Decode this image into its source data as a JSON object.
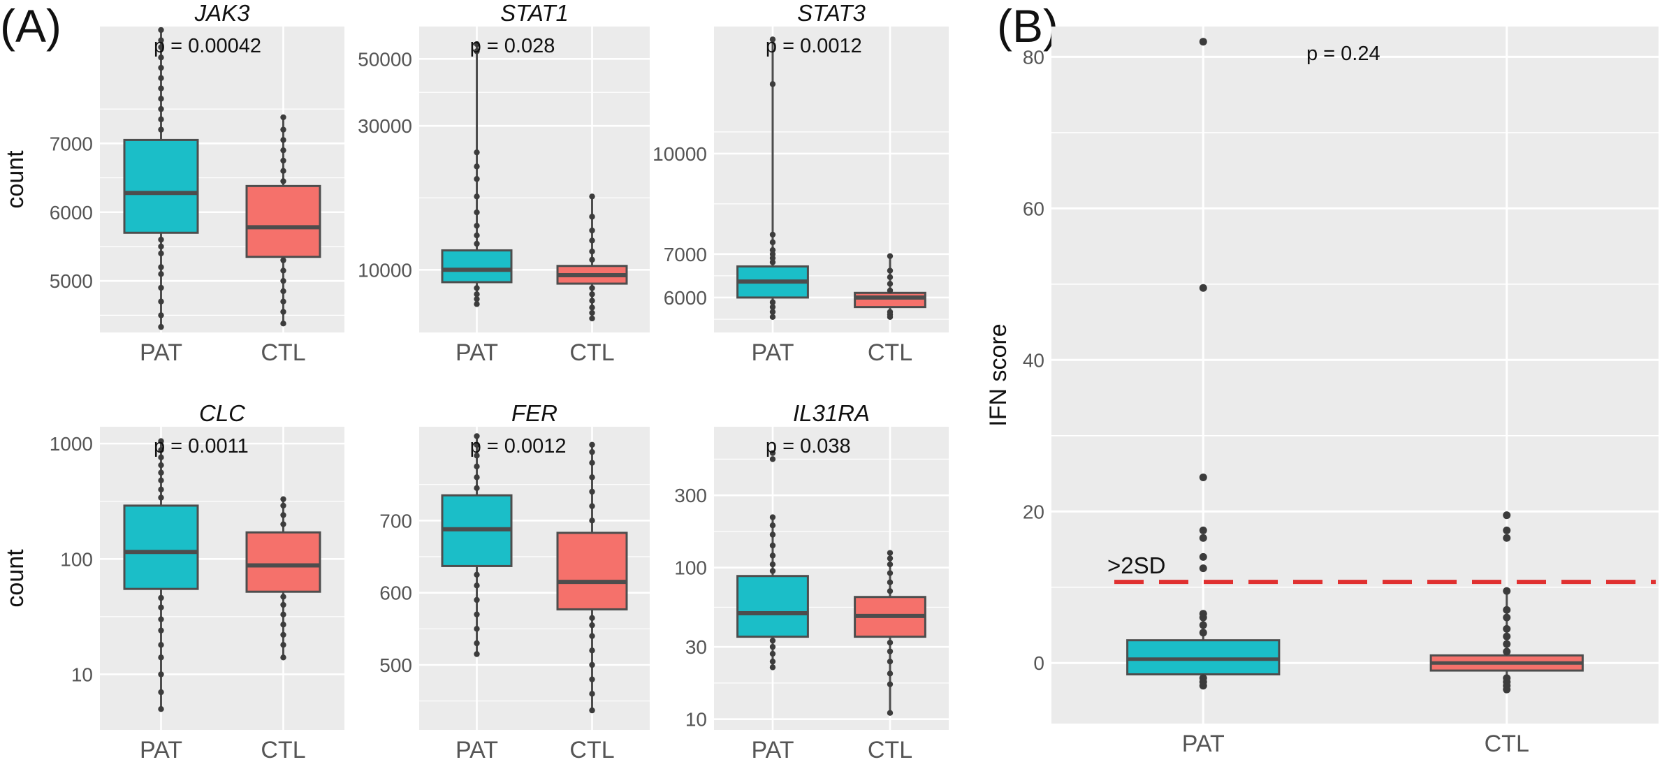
{
  "panel_labels": {
    "a": "(A)",
    "b": "(B)"
  },
  "colors": {
    "pat_fill": "#1bbec8",
    "ctl_fill": "#f5716b",
    "panel_bg": "#ebebeb",
    "grid": "#ffffff",
    "box_stroke": "#4d4d4d",
    "points": "#3c3c3c",
    "threshold": "#e03030"
  },
  "chart_data": [
    {
      "type": "box",
      "id": "jak3",
      "title": "JAK3",
      "pvalue": "p = 0.00042",
      "ylabel": "count",
      "yscale": "linear",
      "ylim": [
        4250,
        8700
      ],
      "yticks": [
        5000,
        6000,
        7000
      ],
      "ytick_labels": [
        "5000",
        "6000",
        "7000"
      ],
      "categories": [
        "PAT",
        "CTL"
      ],
      "boxes": [
        {
          "group": "PAT",
          "min": 4330,
          "q1": 5700,
          "median": 6280,
          "q3": 7050,
          "max": 8650,
          "points": [
            4330,
            4500,
            4700,
            4900,
            5100,
            5200,
            5400,
            5500,
            5600,
            7200,
            7350,
            7500,
            7650,
            7800,
            7950,
            8100,
            8250,
            8400,
            8500,
            8650
          ]
        },
        {
          "group": "CTL",
          "min": 4380,
          "q1": 5350,
          "median": 5780,
          "q3": 6380,
          "max": 7380,
          "points": [
            4380,
            4550,
            4700,
            4850,
            5000,
            5150,
            5300,
            6450,
            6600,
            6750,
            6900,
            7050,
            7200,
            7380
          ]
        }
      ]
    },
    {
      "type": "box",
      "id": "stat1",
      "title": "STAT1",
      "pvalue": "p = 0.028",
      "ylabel": "",
      "yscale": "log",
      "ylim": [
        6200,
        64000
      ],
      "yticks": [
        10000,
        30000,
        50000
      ],
      "ytick_labels": [
        "10000",
        "30000",
        "50000"
      ],
      "categories": [
        "PAT",
        "CTL"
      ],
      "boxes": [
        {
          "group": "PAT",
          "min": 7700,
          "q1": 9100,
          "median": 10000,
          "q3": 11600,
          "max": 56000,
          "points": [
            7700,
            8000,
            8300,
            8700,
            12200,
            13000,
            14000,
            15500,
            17500,
            20000,
            22000,
            24500,
            53000,
            56000
          ]
        },
        {
          "group": "CTL",
          "min": 6900,
          "q1": 9000,
          "median": 9600,
          "q3": 10300,
          "max": 17500,
          "points": [
            6900,
            7200,
            7500,
            7900,
            8300,
            8700,
            10800,
            11500,
            12500,
            13500,
            15000,
            17500
          ]
        }
      ]
    },
    {
      "type": "box",
      "id": "stat3",
      "title": "STAT3",
      "pvalue": "p = 0.0012",
      "ylabel": "",
      "yscale": "log",
      "ylim": [
        5300,
        15700
      ],
      "yticks": [
        6000,
        7000,
        10000
      ],
      "ytick_labels": [
        "6000",
        "7000",
        "10000"
      ],
      "categories": [
        "PAT",
        "CTL"
      ],
      "boxes": [
        {
          "group": "PAT",
          "min": 5600,
          "q1": 6000,
          "median": 6350,
          "q3": 6700,
          "max": 15000,
          "points": [
            5600,
            5700,
            5800,
            5900,
            6800,
            6900,
            7000,
            7100,
            7300,
            7500,
            12800,
            15000
          ]
        },
        {
          "group": "CTL",
          "min": 5600,
          "q1": 5800,
          "median": 6000,
          "q3": 6100,
          "max": 6950,
          "points": [
            5600,
            5650,
            5700,
            6150,
            6300,
            6450,
            6600,
            6950
          ]
        }
      ]
    },
    {
      "type": "box",
      "id": "clc",
      "title": "CLC",
      "pvalue": "p = 0.0011",
      "ylabel": "count",
      "yscale": "log",
      "ylim": [
        3.3,
        1400
      ],
      "yticks": [
        10,
        100,
        1000
      ],
      "ytick_labels": [
        "10",
        "100",
        "1000"
      ],
      "categories": [
        "PAT",
        "CTL"
      ],
      "boxes": [
        {
          "group": "PAT",
          "min": 5,
          "q1": 55,
          "median": 115,
          "q3": 290,
          "max": 1050,
          "points": [
            5,
            7,
            10,
            14,
            18,
            24,
            30,
            38,
            46,
            340,
            400,
            480,
            560,
            650,
            760,
            880,
            1050
          ]
        },
        {
          "group": "CTL",
          "min": 14,
          "q1": 52,
          "median": 88,
          "q3": 170,
          "max": 330,
          "points": [
            14,
            18,
            22,
            27,
            33,
            40,
            47,
            200,
            240,
            290,
            330
          ]
        }
      ]
    },
    {
      "type": "box",
      "id": "fer",
      "title": "FER",
      "pvalue": "p = 0.0012",
      "ylabel": "",
      "yscale": "linear",
      "ylim": [
        410,
        830
      ],
      "yticks": [
        500,
        600,
        700
      ],
      "ytick_labels": [
        "500",
        "600",
        "700"
      ],
      "categories": [
        "PAT",
        "CTL"
      ],
      "boxes": [
        {
          "group": "PAT",
          "min": 515,
          "q1": 637,
          "median": 688,
          "q3": 735,
          "max": 817,
          "points": [
            515,
            530,
            550,
            570,
            590,
            610,
            625,
            745,
            760,
            775,
            790,
            805,
            817
          ]
        },
        {
          "group": "CTL",
          "min": 437,
          "q1": 577,
          "median": 615,
          "q3": 683,
          "max": 805,
          "points": [
            437,
            460,
            480,
            500,
            520,
            540,
            555,
            565,
            700,
            720,
            740,
            760,
            780,
            795,
            805
          ]
        }
      ]
    },
    {
      "type": "box",
      "id": "il31ra",
      "title": "IL31RA",
      "pvalue": "p = 0.038",
      "ylabel": "",
      "yscale": "log",
      "ylim": [
        8.5,
        850
      ],
      "yticks": [
        10,
        30,
        100,
        300
      ],
      "ytick_labels": [
        "10",
        "30",
        "100",
        "300"
      ],
      "categories": [
        "PAT",
        "CTL"
      ],
      "boxes": [
        {
          "group": "PAT",
          "min": 22,
          "q1": 35,
          "median": 50,
          "q3": 88,
          "max": 215,
          "points": [
            22,
            24,
            27,
            30,
            33,
            95,
            105,
            120,
            140,
            165,
            190,
            215,
            520,
            570
          ]
        },
        {
          "group": "CTL",
          "min": 11,
          "q1": 35,
          "median": 48,
          "q3": 64,
          "max": 125,
          "points": [
            11,
            17,
            20,
            24,
            28,
            32,
            70,
            80,
            92,
            105,
            115,
            125
          ]
        }
      ]
    },
    {
      "type": "box",
      "id": "ifn",
      "title": "",
      "pvalue": "p = 0.24",
      "ylabel": "IFN score",
      "yscale": "linear",
      "ylim": [
        -8,
        84
      ],
      "yticks": [
        0,
        20,
        40,
        60,
        80
      ],
      "ytick_labels": [
        "0",
        "20",
        "40",
        "60",
        "80"
      ],
      "categories": [
        "PAT",
        "CTL"
      ],
      "threshold": {
        "value": 10.7,
        "label": ">2SD"
      },
      "boxes": [
        {
          "group": "PAT",
          "min": -3,
          "q1": -1.5,
          "median": 0.5,
          "q3": 3,
          "max": 6.5,
          "points": [
            -3,
            -2.5,
            -2,
            4,
            5,
            6,
            6.5,
            12.5,
            14,
            16.5,
            17.5,
            24.5,
            49.5,
            82
          ]
        },
        {
          "group": "CTL",
          "min": -3.5,
          "q1": -1,
          "median": 0,
          "q3": 1,
          "max": 9.5,
          "points": [
            -3.5,
            -3,
            -2.5,
            -2,
            1.5,
            2.5,
            3.5,
            4.5,
            6,
            7,
            9.5,
            16.5,
            17.5,
            19.5
          ]
        }
      ]
    }
  ]
}
